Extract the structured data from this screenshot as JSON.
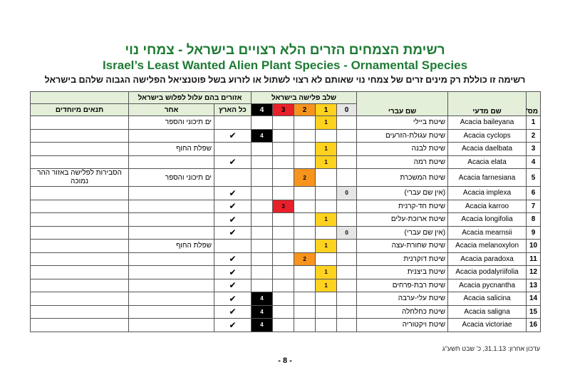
{
  "header": {
    "title_he": "רשימת הצמחים הזרים הלא רצויים בישראל - צמחי נוי",
    "title_en": "Israel’s Least Wanted Alien Plant Species - Ornamental Species",
    "subtitle": "רשימה זו כוללת רק מינים זרים של צמחי נוי שאותם לא רצוי לשתול או לזרוע בשל פוטנציאל הפלישה הגבוה שלהם בישראל"
  },
  "table": {
    "columns": {
      "number": "מס'",
      "scientific": "שם מדעי",
      "hebrew": "שם עברי",
      "stage_group": "שלב פלישה בישראל",
      "region_group": "אזורים בהם עלול לפלוש בישראל",
      "whole_country": "כל הארץ",
      "other": "אחר",
      "special": "תנאים מיוחדים"
    },
    "stage_levels": [
      {
        "label": "0",
        "color": "#e6e6e6",
        "text": "#000"
      },
      {
        "label": "1",
        "color": "#ffd21f",
        "text": "#000"
      },
      {
        "label": "2",
        "color": "#f7941d",
        "text": "#000"
      },
      {
        "label": "3",
        "color": "#e8202a",
        "text": "#000"
      },
      {
        "label": "4",
        "color": "#000000",
        "text": "#fff"
      }
    ],
    "rows": [
      {
        "number": 1,
        "scientific": "Acacia baileyana",
        "hebrew": "שיטת ביילי",
        "stage": 1,
        "other": "ים תיכוני והספר"
      },
      {
        "number": 2,
        "scientific": "Acacia cyclops",
        "hebrew": "שיטת עגולת-הזרעים",
        "stage": 4,
        "whole_country": "✔"
      },
      {
        "number": 3,
        "scientific": "Acacia daelbata",
        "hebrew": "שיטת לבנה",
        "stage": 1,
        "other": "שפלת החוף"
      },
      {
        "number": 4,
        "scientific": "Acacia elata",
        "hebrew": "שיטת רמה",
        "stage": 1,
        "whole_country": "✔"
      },
      {
        "number": 5,
        "scientific": "Acacia farnesiana",
        "hebrew": "שיטת המשכרת",
        "stage": 2,
        "other": "ים תיכוני והספר",
        "special": "הסבירות לפלישה באזור ההר נמוכה"
      },
      {
        "number": 6,
        "scientific": "Acacia implexa",
        "hebrew": "(אין שם עברי)",
        "stage": 0,
        "whole_country": "✔"
      },
      {
        "number": 7,
        "scientific": "Acacia karroo",
        "hebrew": "שיטת חד-קרנית",
        "stage": 3,
        "whole_country": "✔"
      },
      {
        "number": 8,
        "scientific": "Acacia longifolia",
        "hebrew": "שיטת ארוכת-עלים",
        "stage": 1,
        "whole_country": "✔"
      },
      {
        "number": 9,
        "scientific": "Acacia mearnsii",
        "hebrew": "(אין שם עברי)",
        "stage": 0,
        "whole_country": "✔"
      },
      {
        "number": 10,
        "scientific": "Acacia melanoxylon",
        "hebrew": "שיטת שחורת-עצה",
        "stage": 1,
        "other": "שפלת החוף"
      },
      {
        "number": 11,
        "scientific": "Acacia paradoxa",
        "hebrew": "שיטת דוקרנית",
        "stage": 2,
        "whole_country": "✔"
      },
      {
        "number": 12,
        "scientific": "Acacia podalyriifolia",
        "hebrew": "שיטת ביצנית",
        "stage": 1,
        "whole_country": "✔"
      },
      {
        "number": 13,
        "scientific": "Acacia pycnantha",
        "hebrew": "שיטת רבת-פרחים",
        "stage": 1,
        "whole_country": "✔"
      },
      {
        "number": 14,
        "scientific": "Acacia salicina",
        "hebrew": "שיטת עלי-ערבה",
        "stage": 4,
        "whole_country": "✔"
      },
      {
        "number": 15,
        "scientific": "Acacia saligna",
        "hebrew": "שיטת כחלחלה",
        "stage": 4,
        "whole_country": "✔"
      },
      {
        "number": 16,
        "scientific": "Acacia victoriae",
        "hebrew": "שיטת ויקטוריה",
        "stage": 4,
        "whole_country": "✔"
      }
    ]
  },
  "footer": {
    "updated": "עדכון אחרון: 31.1.13, כ' שבט תשע\"ג",
    "page": "- 8 -"
  }
}
